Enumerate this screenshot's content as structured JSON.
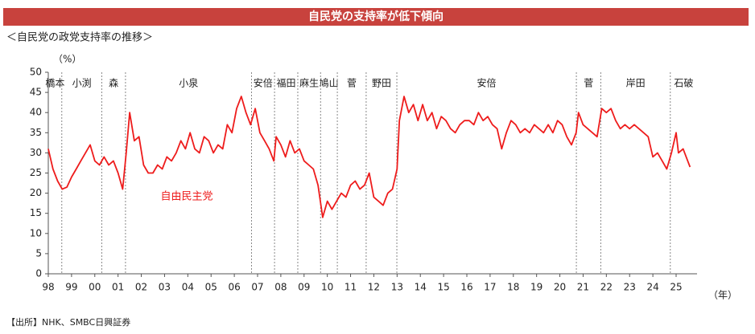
{
  "chart_data": {
    "type": "line",
    "title": "自民党の支持率が低下傾向",
    "subtitle": "＜自民党の政党支持率の推移＞",
    "y_label": "（%）",
    "x_label": "（年）",
    "source": "【出所】NHK、SMBC日興証券",
    "xlim": [
      1998,
      2025.9
    ],
    "xticks": [
      {
        "value": 1998,
        "label": "98"
      },
      {
        "value": 1999,
        "label": "99"
      },
      {
        "value": 2000,
        "label": "00"
      },
      {
        "value": 2001,
        "label": "01"
      },
      {
        "value": 2002,
        "label": "02"
      },
      {
        "value": 2003,
        "label": "03"
      },
      {
        "value": 2004,
        "label": "04"
      },
      {
        "value": 2005,
        "label": "05"
      },
      {
        "value": 2006,
        "label": "06"
      },
      {
        "value": 2007,
        "label": "07"
      },
      {
        "value": 2008,
        "label": "08"
      },
      {
        "value": 2009,
        "label": "09"
      },
      {
        "value": 2010,
        "label": "10"
      },
      {
        "value": 2011,
        "label": "11"
      },
      {
        "value": 2012,
        "label": "12"
      },
      {
        "value": 2013,
        "label": "13"
      },
      {
        "value": 2014,
        "label": "14"
      },
      {
        "value": 2015,
        "label": "15"
      },
      {
        "value": 2016,
        "label": "16"
      },
      {
        "value": 2017,
        "label": "17"
      },
      {
        "value": 2018,
        "label": "18"
      },
      {
        "value": 2019,
        "label": "19"
      },
      {
        "value": 2020,
        "label": "20"
      },
      {
        "value": 2021,
        "label": "21"
      },
      {
        "value": 2022,
        "label": "22"
      },
      {
        "value": 2023,
        "label": "23"
      },
      {
        "value": 2024,
        "label": "24"
      },
      {
        "value": 2025,
        "label": "25"
      }
    ],
    "ylim": [
      0,
      50
    ],
    "yticks": [
      0,
      5,
      10,
      15,
      20,
      25,
      30,
      35,
      40,
      45,
      50
    ],
    "grid": false,
    "prime_ministers": [
      {
        "name": "橋本"
      },
      {
        "name": "小渕",
        "start": 1998.58
      },
      {
        "name": "森",
        "start": 2000.3
      },
      {
        "name": "小泉",
        "start": 2001.32
      },
      {
        "name": "安倍",
        "start": 2006.74
      },
      {
        "name": "福田",
        "start": 2007.73
      },
      {
        "name": "麻生",
        "start": 2008.73
      },
      {
        "name": "鳩山",
        "start": 2009.71
      },
      {
        "name": "菅",
        "start": 2010.43
      },
      {
        "name": "野田",
        "start": 2011.67
      },
      {
        "name": "安倍",
        "start": 2012.99
      },
      {
        "name": "菅",
        "start": 2020.71
      },
      {
        "name": "岸田",
        "start": 2021.76
      },
      {
        "name": "石破",
        "start": 2024.75
      }
    ],
    "x": [
      1998.0,
      1998.2,
      1998.4,
      1998.6,
      1998.8,
      1999.0,
      1999.2,
      1999.4,
      1999.6,
      1999.8,
      2000.0,
      2000.2,
      2000.4,
      2000.6,
      2000.8,
      2001.0,
      2001.2,
      2001.35,
      2001.5,
      2001.7,
      2001.9,
      2002.1,
      2002.3,
      2002.5,
      2002.7,
      2002.9,
      2003.1,
      2003.3,
      2003.5,
      2003.7,
      2003.9,
      2004.1,
      2004.3,
      2004.5,
      2004.7,
      2004.9,
      2005.1,
      2005.3,
      2005.5,
      2005.7,
      2005.9,
      2006.1,
      2006.3,
      2006.5,
      2006.7,
      2006.9,
      2007.1,
      2007.3,
      2007.5,
      2007.7,
      2007.8,
      2008.0,
      2008.2,
      2008.4,
      2008.6,
      2008.8,
      2009.0,
      2009.2,
      2009.4,
      2009.6,
      2009.8,
      2010.0,
      2010.2,
      2010.4,
      2010.6,
      2010.8,
      2011.0,
      2011.2,
      2011.4,
      2011.6,
      2011.8,
      2012.0,
      2012.2,
      2012.4,
      2012.6,
      2012.8,
      2013.0,
      2013.1,
      2013.3,
      2013.5,
      2013.7,
      2013.9,
      2014.1,
      2014.3,
      2014.5,
      2014.7,
      2014.9,
      2015.1,
      2015.3,
      2015.5,
      2015.7,
      2015.9,
      2016.1,
      2016.3,
      2016.5,
      2016.7,
      2016.9,
      2017.1,
      2017.3,
      2017.5,
      2017.7,
      2017.9,
      2018.1,
      2018.3,
      2018.5,
      2018.7,
      2018.9,
      2019.1,
      2019.3,
      2019.5,
      2019.7,
      2019.9,
      2020.1,
      2020.3,
      2020.5,
      2020.7,
      2020.8,
      2021.0,
      2021.2,
      2021.4,
      2021.6,
      2021.8,
      2022.0,
      2022.2,
      2022.4,
      2022.6,
      2022.8,
      2023.0,
      2023.2,
      2023.4,
      2023.6,
      2023.8,
      2024.0,
      2024.2,
      2024.4,
      2024.6,
      2024.8,
      2025.0,
      2025.1,
      2025.3,
      2025.5,
      2025.6
    ],
    "series": [
      {
        "name": "自由民主党",
        "color": "#ee1c1c",
        "values": [
          31,
          26,
          23,
          21,
          21.5,
          24,
          26,
          28,
          30,
          32,
          28,
          27,
          29,
          27,
          28,
          25,
          21,
          30,
          40,
          33,
          34,
          27,
          25,
          25,
          27,
          26,
          29,
          28,
          30,
          33,
          31,
          35,
          31,
          30,
          34,
          33,
          30,
          32,
          31,
          37,
          35,
          41,
          44,
          40,
          37,
          41,
          35,
          33,
          31,
          28,
          34,
          32,
          29,
          33,
          30,
          31,
          28,
          27,
          26,
          22,
          14,
          18,
          16,
          18,
          20,
          19,
          22,
          23,
          21,
          22,
          25,
          19,
          18,
          17,
          20,
          21,
          26,
          38,
          44,
          40,
          42,
          38,
          42,
          38,
          40,
          36,
          39,
          38,
          36,
          35,
          37,
          38,
          38,
          37,
          40,
          38,
          39,
          37,
          36,
          31,
          35,
          38,
          37,
          35,
          36,
          35,
          37,
          36,
          35,
          37,
          35,
          38,
          37,
          34,
          32,
          35,
          40,
          37,
          36,
          35,
          34,
          41,
          40,
          41,
          38,
          36,
          37,
          36,
          37,
          36,
          35,
          34,
          29,
          30,
          28,
          26,
          30,
          35,
          30,
          31,
          28,
          26.5
        ]
      }
    ]
  }
}
